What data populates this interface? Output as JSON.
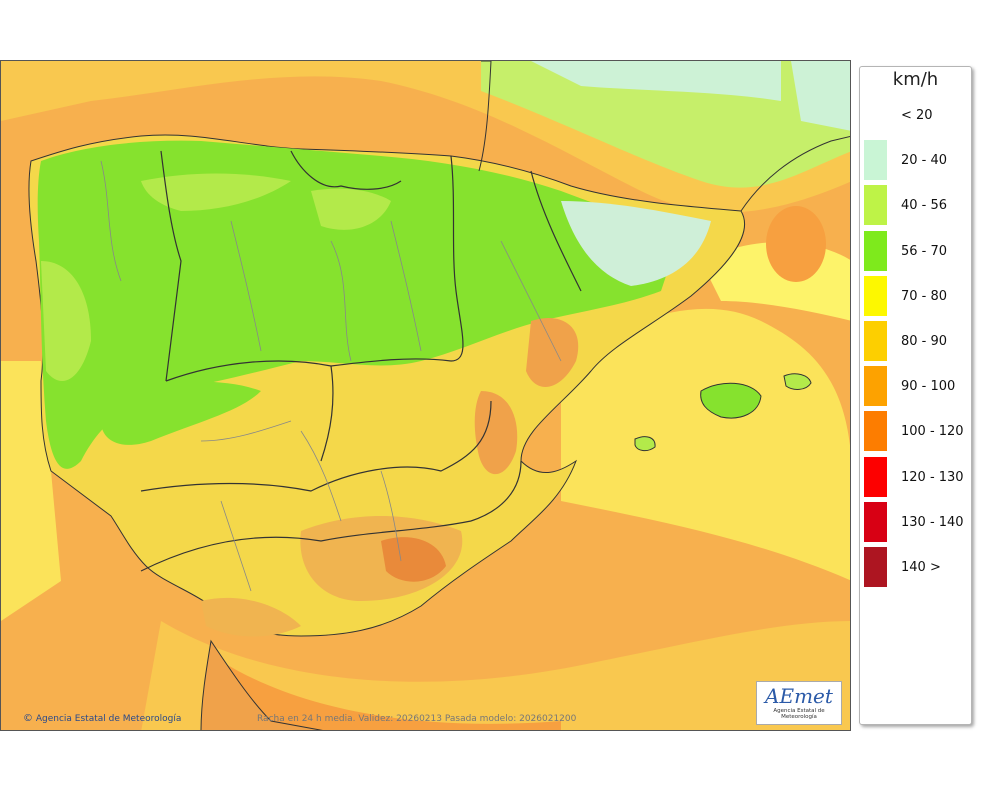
{
  "legend": {
    "unit": "km/h",
    "items": [
      {
        "label": "< 20",
        "color": "#ffffff"
      },
      {
        "label": "20 - 40",
        "color": "#c9f5d5"
      },
      {
        "label": "40 - 56",
        "color": "#bef347"
      },
      {
        "label": "56 - 70",
        "color": "#7eea1c"
      },
      {
        "label": "70 - 80",
        "color": "#fdf800"
      },
      {
        "label": "80 - 90",
        "color": "#fdcf00"
      },
      {
        "label": "90 - 100",
        "color": "#fda200"
      },
      {
        "label": "100 - 120",
        "color": "#fd7d00"
      },
      {
        "label": "120 - 130",
        "color": "#fd0000"
      },
      {
        "label": "130 - 140",
        "color": "#d80014"
      },
      {
        "label": "140 >",
        "color": "#ad1521"
      }
    ]
  },
  "credit": {
    "symbol": "©",
    "text": "Agencia Estatal de Meteorología"
  },
  "caption": "Racha en 24 h media. Validez: 20260213 Pasada modelo: 2026021200",
  "logo": {
    "text": "AEmet",
    "subtitle": "Agencia Estatal de Meteorología"
  }
}
